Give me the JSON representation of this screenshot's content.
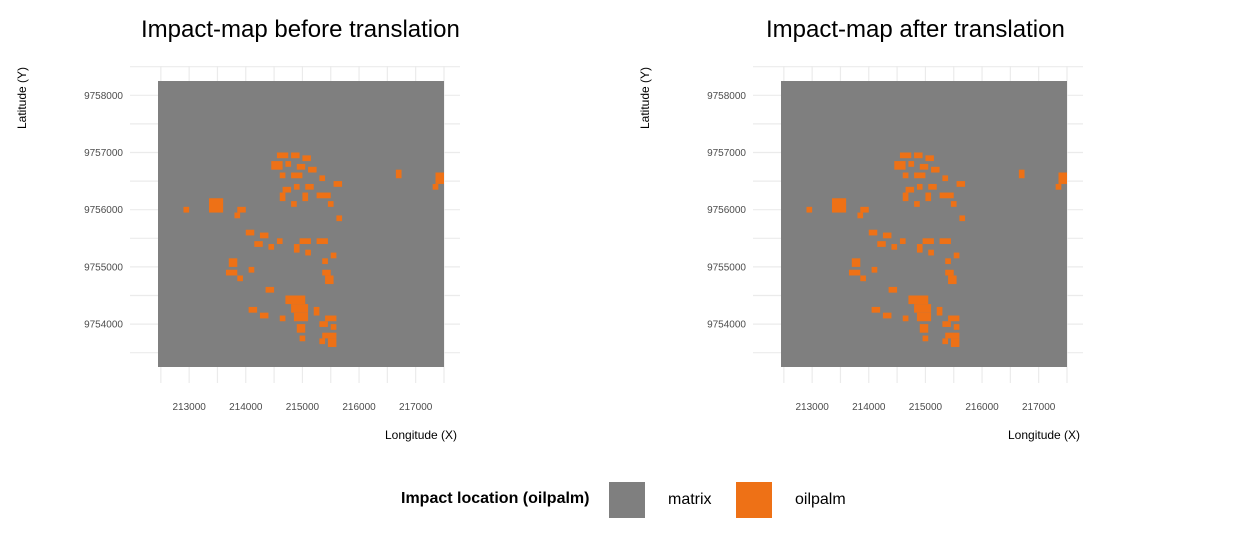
{
  "chart_data": [
    {
      "type": "heatmap",
      "title": "Impact-map before translation",
      "xlabel": "Longitude (X)",
      "ylabel": "Latitude (Y)",
      "xlim": [
        212450,
        217500
      ],
      "ylim": [
        9753250,
        9758250
      ],
      "xticks": [
        213000,
        214000,
        215000,
        216000,
        217000
      ],
      "yticks": [
        9754000,
        9755000,
        9756000,
        9757000,
        9758000
      ],
      "grid": true,
      "classes": [
        "matrix",
        "oilpalm"
      ],
      "oilpalm_cells": [
        [
          214550,
          9756900,
          200,
          100
        ],
        [
          214800,
          9756900,
          150,
          100
        ],
        [
          215000,
          9756850,
          150,
          100
        ],
        [
          214450,
          9756700,
          200,
          150
        ],
        [
          214700,
          9756750,
          100,
          100
        ],
        [
          214900,
          9756700,
          150,
          100
        ],
        [
          215100,
          9756650,
          150,
          100
        ],
        [
          214600,
          9756550,
          100,
          100
        ],
        [
          214800,
          9756550,
          200,
          100
        ],
        [
          215300,
          9756500,
          100,
          100
        ],
        [
          215550,
          9756400,
          150,
          100
        ],
        [
          214650,
          9756300,
          150,
          100
        ],
        [
          214850,
          9756350,
          100,
          100
        ],
        [
          215050,
          9756350,
          150,
          100
        ],
        [
          214600,
          9756150,
          100,
          150
        ],
        [
          215000,
          9756150,
          100,
          150
        ],
        [
          215250,
          9756200,
          250,
          100
        ],
        [
          215450,
          9756050,
          100,
          100
        ],
        [
          214800,
          9756050,
          100,
          100
        ],
        [
          215600,
          9755800,
          100,
          100
        ],
        [
          212900,
          9755950,
          100,
          100
        ],
        [
          213350,
          9755950,
          250,
          250
        ],
        [
          213850,
          9755950,
          150,
          100
        ],
        [
          213800,
          9755850,
          100,
          100
        ],
        [
          214000,
          9755550,
          150,
          100
        ],
        [
          214250,
          9755500,
          150,
          100
        ],
        [
          214150,
          9755350,
          150,
          100
        ],
        [
          214400,
          9755300,
          100,
          100
        ],
        [
          214550,
          9755400,
          100,
          100
        ],
        [
          214950,
          9755400,
          200,
          100
        ],
        [
          215250,
          9755400,
          200,
          100
        ],
        [
          215050,
          9755200,
          100,
          100
        ],
        [
          215500,
          9755150,
          100,
          100
        ],
        [
          214850,
          9755250,
          100,
          150
        ],
        [
          215350,
          9755050,
          100,
          100
        ],
        [
          213700,
          9755000,
          150,
          150
        ],
        [
          213650,
          9754850,
          200,
          100
        ],
        [
          213850,
          9754750,
          100,
          100
        ],
        [
          214050,
          9754900,
          100,
          100
        ],
        [
          215350,
          9754850,
          150,
          100
        ],
        [
          215400,
          9754700,
          150,
          150
        ],
        [
          214350,
          9754550,
          150,
          100
        ],
        [
          214700,
          9754350,
          350,
          150
        ],
        [
          214800,
          9754200,
          300,
          150
        ],
        [
          214850,
          9754050,
          250,
          150
        ],
        [
          214050,
          9754200,
          150,
          100
        ],
        [
          214250,
          9754100,
          150,
          100
        ],
        [
          214600,
          9754050,
          100,
          100
        ],
        [
          215200,
          9754150,
          100,
          150
        ],
        [
          215400,
          9754050,
          200,
          100
        ],
        [
          215300,
          9753950,
          150,
          100
        ],
        [
          215500,
          9753900,
          100,
          100
        ],
        [
          214900,
          9753850,
          150,
          150
        ],
        [
          215350,
          9753750,
          250,
          100
        ],
        [
          215450,
          9753600,
          150,
          150
        ],
        [
          215300,
          9753650,
          100,
          100
        ],
        [
          214950,
          9753700,
          100,
          100
        ],
        [
          216650,
          9756550,
          100,
          150
        ],
        [
          217350,
          9756450,
          150,
          200
        ],
        [
          217300,
          9756350,
          100,
          100
        ]
      ]
    },
    {
      "type": "heatmap",
      "title": "Impact-map after translation",
      "xlabel": "Longitude (X)",
      "ylabel": "Latitude (Y)",
      "xlim": [
        212450,
        217500
      ],
      "ylim": [
        9753250,
        9758250
      ],
      "xticks": [
        213000,
        214000,
        215000,
        216000,
        217000
      ],
      "yticks": [
        9754000,
        9755000,
        9756000,
        9757000,
        9758000
      ],
      "grid": true,
      "classes": [
        "matrix",
        "oilpalm"
      ],
      "oilpalm_cells": [
        [
          214550,
          9756900,
          200,
          100
        ],
        [
          214800,
          9756900,
          150,
          100
        ],
        [
          215000,
          9756850,
          150,
          100
        ],
        [
          214450,
          9756700,
          200,
          150
        ],
        [
          214700,
          9756750,
          100,
          100
        ],
        [
          214900,
          9756700,
          150,
          100
        ],
        [
          215100,
          9756650,
          150,
          100
        ],
        [
          214600,
          9756550,
          100,
          100
        ],
        [
          214800,
          9756550,
          200,
          100
        ],
        [
          215300,
          9756500,
          100,
          100
        ],
        [
          215550,
          9756400,
          150,
          100
        ],
        [
          214650,
          9756300,
          150,
          100
        ],
        [
          214850,
          9756350,
          100,
          100
        ],
        [
          215050,
          9756350,
          150,
          100
        ],
        [
          214600,
          9756150,
          100,
          150
        ],
        [
          215000,
          9756150,
          100,
          150
        ],
        [
          215250,
          9756200,
          250,
          100
        ],
        [
          215450,
          9756050,
          100,
          100
        ],
        [
          214800,
          9756050,
          100,
          100
        ],
        [
          215600,
          9755800,
          100,
          100
        ],
        [
          212900,
          9755950,
          100,
          100
        ],
        [
          213350,
          9755950,
          250,
          250
        ],
        [
          213850,
          9755950,
          150,
          100
        ],
        [
          213800,
          9755850,
          100,
          100
        ],
        [
          214000,
          9755550,
          150,
          100
        ],
        [
          214250,
          9755500,
          150,
          100
        ],
        [
          214150,
          9755350,
          150,
          100
        ],
        [
          214400,
          9755300,
          100,
          100
        ],
        [
          214550,
          9755400,
          100,
          100
        ],
        [
          214950,
          9755400,
          200,
          100
        ],
        [
          215250,
          9755400,
          200,
          100
        ],
        [
          215050,
          9755200,
          100,
          100
        ],
        [
          215500,
          9755150,
          100,
          100
        ],
        [
          214850,
          9755250,
          100,
          150
        ],
        [
          215350,
          9755050,
          100,
          100
        ],
        [
          213700,
          9755000,
          150,
          150
        ],
        [
          213650,
          9754850,
          200,
          100
        ],
        [
          213850,
          9754750,
          100,
          100
        ],
        [
          214050,
          9754900,
          100,
          100
        ],
        [
          215350,
          9754850,
          150,
          100
        ],
        [
          215400,
          9754700,
          150,
          150
        ],
        [
          214350,
          9754550,
          150,
          100
        ],
        [
          214700,
          9754350,
          350,
          150
        ],
        [
          214800,
          9754200,
          300,
          150
        ],
        [
          214850,
          9754050,
          250,
          150
        ],
        [
          214050,
          9754200,
          150,
          100
        ],
        [
          214250,
          9754100,
          150,
          100
        ],
        [
          214600,
          9754050,
          100,
          100
        ],
        [
          215200,
          9754150,
          100,
          150
        ],
        [
          215400,
          9754050,
          200,
          100
        ],
        [
          215300,
          9753950,
          150,
          100
        ],
        [
          215500,
          9753900,
          100,
          100
        ],
        [
          214900,
          9753850,
          150,
          150
        ],
        [
          215350,
          9753750,
          250,
          100
        ],
        [
          215450,
          9753600,
          150,
          150
        ],
        [
          215300,
          9753650,
          100,
          100
        ],
        [
          214950,
          9753700,
          100,
          100
        ],
        [
          216650,
          9756550,
          100,
          150
        ],
        [
          217350,
          9756450,
          150,
          200
        ],
        [
          217300,
          9756350,
          100,
          100
        ]
      ]
    }
  ],
  "legend": {
    "title": "Impact location (oilpalm)",
    "items": [
      {
        "label": "matrix",
        "color": "#7f7f7f"
      },
      {
        "label": "oilpalm",
        "color": "#ee7116"
      }
    ]
  },
  "colors": {
    "matrix": "#7f7f7f",
    "oilpalm": "#ee7116",
    "grid": "#ebebeb"
  }
}
